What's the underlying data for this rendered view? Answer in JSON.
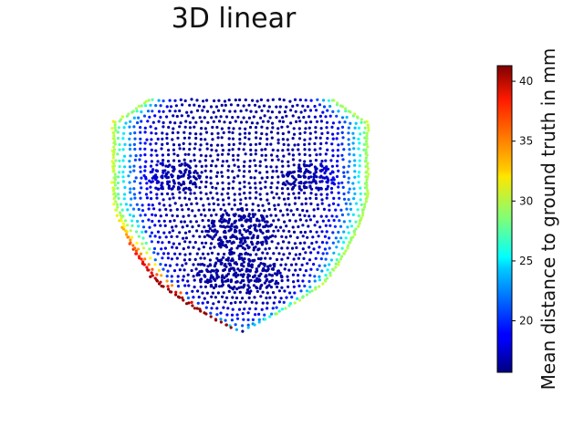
{
  "chart_data": {
    "type": "scatter",
    "title": "3D linear",
    "colorbar": {
      "label": "Mean distance to ground truth in mm",
      "range": [
        15.7,
        41.3
      ],
      "ticks": [
        20,
        25,
        30,
        35,
        40
      ],
      "tick_labels": [
        "20",
        "25",
        "30",
        "35",
        "40"
      ],
      "colormap": "jet"
    },
    "description_of_values": "3D face point cloud; most points near 16-19 mm (dark blue); face boundary points higher, reaching about 38-41 mm at the left jaw edge"
  }
}
